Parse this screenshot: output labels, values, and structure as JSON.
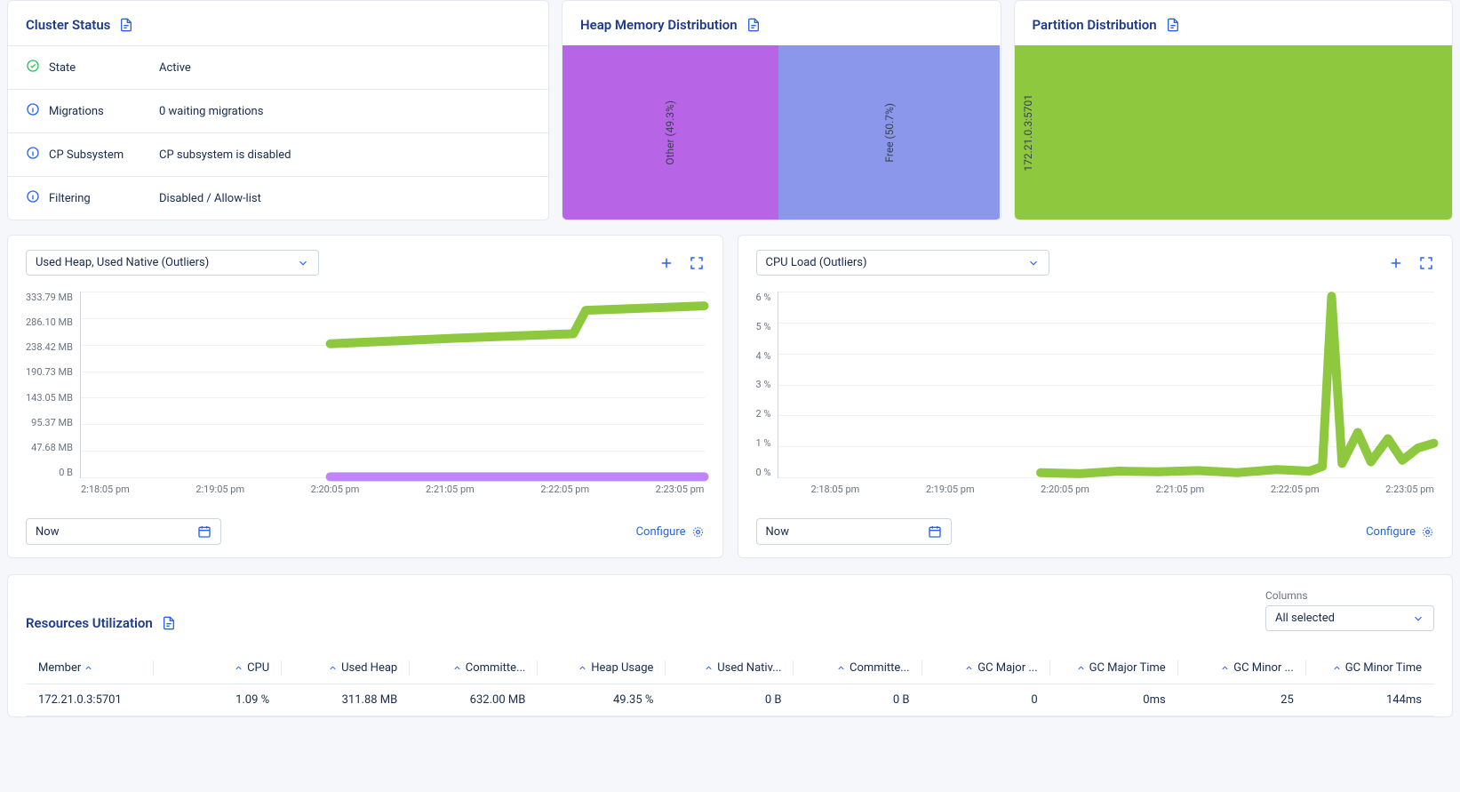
{
  "cluster_status": {
    "title": "Cluster Status",
    "rows": [
      {
        "icon": "check",
        "label": "State",
        "value": "Active"
      },
      {
        "icon": "info",
        "label": "Migrations",
        "value": "0 waiting migrations"
      },
      {
        "icon": "info",
        "label": "CP Subsystem",
        "value": "CP subsystem is disabled"
      },
      {
        "icon": "info",
        "label": "Filtering",
        "value": "Disabled / Allow-list"
      }
    ]
  },
  "heap_dist": {
    "title": "Heap Memory Distribution",
    "segments": [
      {
        "label": "Other (49.3%)",
        "pct": 49.3,
        "color": "#b765e6"
      },
      {
        "label": "Free (50.7%)",
        "pct": 50.7,
        "color": "#8b97ea"
      }
    ],
    "background": "#ffffff"
  },
  "partition_dist": {
    "title": "Partition Distribution",
    "segments": [
      {
        "label": "172.21.0.3:5701",
        "pct": 100,
        "color": "#8ec83f"
      }
    ],
    "label_align": "start"
  },
  "heap_chart": {
    "selector_label": "Used Heap, Used Native (Outliers)",
    "time_selector": "Now",
    "configure_label": "Configure",
    "y_ticks": [
      "333.79 MB",
      "286.10 MB",
      "238.42 MB",
      "190.73 MB",
      "143.05 MB",
      "95.37 MB",
      "47.68 MB",
      "0 B"
    ],
    "x_ticks": [
      "2:18:05 pm",
      "2:19:05 pm",
      "2:20:05 pm",
      "2:21:05 pm",
      "2:22:05 pm",
      "2:23:05 pm"
    ],
    "y_max_mb": 333.79,
    "x_domain_min": 0,
    "x_domain_max": 5,
    "series": [
      {
        "name": "Used Heap",
        "color": "#8ec83f",
        "width": 2,
        "points": [
          {
            "x": 2.0,
            "y": 240
          },
          {
            "x": 3.0,
            "y": 250
          },
          {
            "x": 3.95,
            "y": 258
          },
          {
            "x": 4.05,
            "y": 300
          },
          {
            "x": 5.0,
            "y": 308
          }
        ]
      },
      {
        "name": "Used Native",
        "color": "#c084fc",
        "width": 2,
        "points": [
          {
            "x": 2.0,
            "y": 1
          },
          {
            "x": 5.0,
            "y": 1
          }
        ]
      }
    ],
    "grid_color": "#eef1f5"
  },
  "cpu_chart": {
    "selector_label": "CPU Load (Outliers)",
    "time_selector": "Now",
    "configure_label": "Configure",
    "y_ticks": [
      "6 %",
      "5 %",
      "4 %",
      "3 %",
      "2 %",
      "1 %",
      "0 %"
    ],
    "x_ticks": [
      "2:18:05 pm",
      "2:19:05 pm",
      "2:20:05 pm",
      "2:21:05 pm",
      "2:22:05 pm",
      "2:23:05 pm"
    ],
    "y_max_pct": 6,
    "x_domain_min": 0,
    "x_domain_max": 5,
    "series": [
      {
        "name": "CPU Load",
        "color": "#8ec83f",
        "width": 2,
        "points": [
          {
            "x": 2.0,
            "y": 0.15
          },
          {
            "x": 2.3,
            "y": 0.12
          },
          {
            "x": 2.6,
            "y": 0.2
          },
          {
            "x": 2.9,
            "y": 0.18
          },
          {
            "x": 3.2,
            "y": 0.22
          },
          {
            "x": 3.5,
            "y": 0.15
          },
          {
            "x": 3.8,
            "y": 0.25
          },
          {
            "x": 4.05,
            "y": 0.2
          },
          {
            "x": 4.15,
            "y": 0.35
          },
          {
            "x": 4.22,
            "y": 5.85
          },
          {
            "x": 4.3,
            "y": 0.45
          },
          {
            "x": 4.42,
            "y": 1.45
          },
          {
            "x": 4.52,
            "y": 0.5
          },
          {
            "x": 4.65,
            "y": 1.25
          },
          {
            "x": 4.76,
            "y": 0.55
          },
          {
            "x": 4.88,
            "y": 0.95
          },
          {
            "x": 5.0,
            "y": 1.1
          }
        ]
      }
    ],
    "grid_color": "#eef1f5"
  },
  "resources": {
    "title": "Resources Utilization",
    "columns_label": "Columns",
    "columns_value": "All selected",
    "headers": [
      "Member",
      "CPU",
      "Used Heap",
      "Committe...",
      "Heap Usage",
      "Used Nativ...",
      "Committe...",
      "GC Major ...",
      "GC Major Time",
      "GC Minor ...",
      "GC Minor Time"
    ],
    "rows": [
      [
        "172.21.0.3:5701",
        "1.09 %",
        "311.88 MB",
        "632.00 MB",
        "49.35 %",
        "0 B",
        "0 B",
        "0",
        "0ms",
        "25",
        "144ms"
      ]
    ]
  },
  "colors": {
    "accent": "#2563eb",
    "text": "#172b4d",
    "muted": "#6b7280",
    "border": "#e4e8f0",
    "page_bg": "#f5f7fb",
    "card_bg": "#ffffff"
  }
}
